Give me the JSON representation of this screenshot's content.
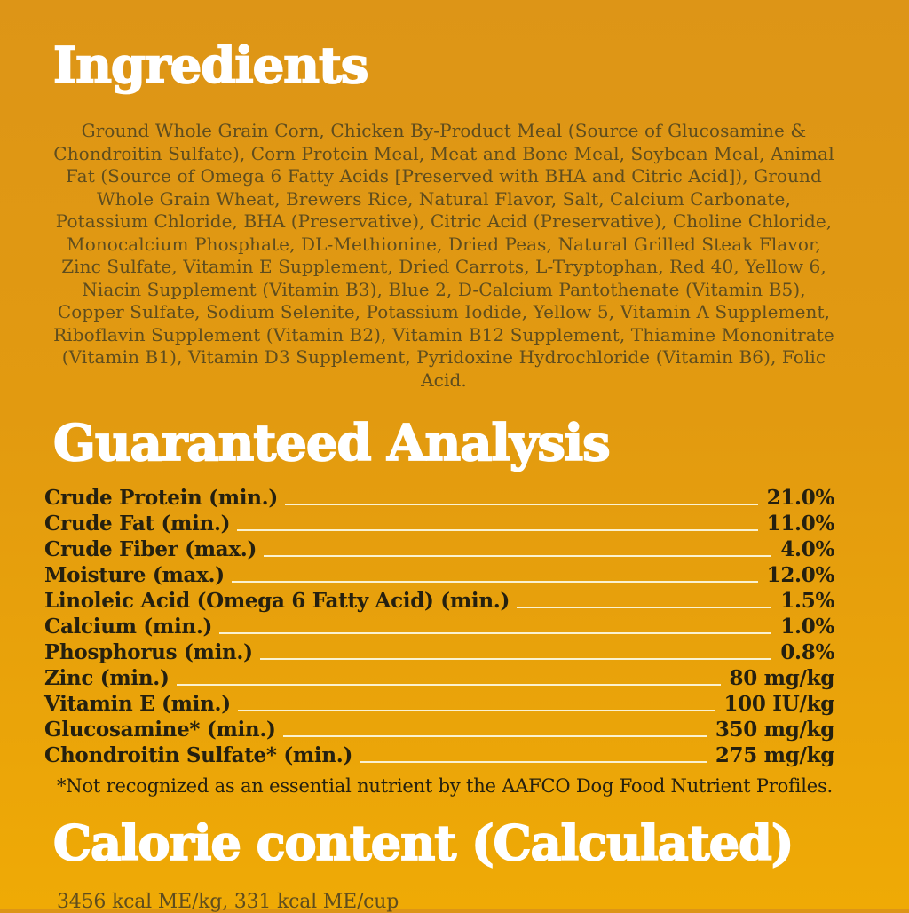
{
  "colors": {
    "background-top": "#DD9517",
    "background-bottom": "#EFAA05",
    "heading": "#FFFFFF",
    "body-text": "#5F4D1E",
    "analysis-text": "#25200F",
    "leader-line": "#FBF2D0"
  },
  "ingredients": {
    "title": "Ingredients",
    "text": "Ground Whole Grain Corn, Chicken By-Product Meal (Source of Glucosamine & Chondroitin Sulfate), Corn Protein Meal, Meat and Bone Meal, Soybean Meal, Animal Fat (Source of Omega 6 Fatty Acids [Preserved with BHA and Citric Acid]), Ground Whole Grain Wheat, Brewers Rice, Natural Flavor, Salt, Calcium Carbonate, Potassium Chloride, BHA (Preservative), Citric Acid (Preservative), Choline Chloride, Monocalcium Phosphate, DL-Methionine, Dried Peas, Natural Grilled Steak Flavor, Zinc Sulfate, Vitamin E Supplement, Dried Carrots, L-Tryptophan, Red 40, Yellow 6, Niacin Supplement (Vitamin B3), Blue 2, D-Calcium Pantothenate (Vitamin B5), Copper Sulfate, Sodium Selenite, Potassium Iodide, Yellow 5, Vitamin A Supplement, Riboflavin Supplement (Vitamin B2), Vitamin B12 Supplement, Thiamine Mononitrate (Vitamin B1), Vitamin D3 Supplement, Pyridoxine Hydrochloride (Vitamin B6), Folic Acid."
  },
  "guaranteed_analysis": {
    "title": "Guaranteed Analysis",
    "rows": [
      {
        "label": "Crude Protein (min.)",
        "value": "21.0%"
      },
      {
        "label": "Crude Fat (min.)",
        "value": "11.0%"
      },
      {
        "label": "Crude Fiber (max.)",
        "value": "4.0%"
      },
      {
        "label": "Moisture (max.)",
        "value": "12.0%"
      },
      {
        "label": "Linoleic Acid (Omega 6 Fatty Acid) (min.)",
        "value": "1.5%"
      },
      {
        "label": "Calcium (min.)",
        "value": "1.0%"
      },
      {
        "label": "Phosphorus (min.)",
        "value": "0.8%"
      },
      {
        "label": "Zinc (min.)",
        "value": "80 mg/kg"
      },
      {
        "label": "Vitamin E (min.)",
        "value": "100 IU/kg"
      },
      {
        "label": "Glucosamine* (min.)",
        "value": "350 mg/kg"
      },
      {
        "label": "Chondroitin Sulfate* (min.)",
        "value": "275 mg/kg"
      }
    ],
    "footnote": "*Not recognized as an essential nutrient by the AAFCO Dog Food Nutrient Profiles."
  },
  "calorie_content": {
    "title": "Calorie content (Calculated)",
    "text": "3456 kcal ME/kg, 331 kcal ME/cup"
  }
}
